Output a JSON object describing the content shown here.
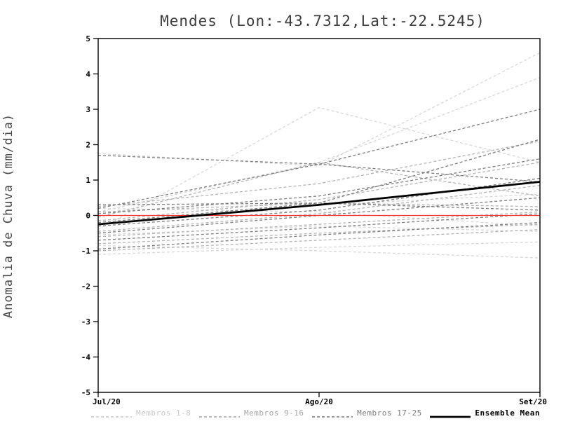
{
  "title": "Mendes (Lon:-43.7312,Lat:-22.5245)",
  "chart_data": {
    "type": "line",
    "title": "Mendes (Lon:-43.7312,Lat:-22.5245)",
    "x": [
      "Jul/20",
      "Ago/20",
      "Set/20"
    ],
    "ylabel": "Anomalia de Chuva (mm/dia)",
    "ylim": [
      -5,
      5
    ],
    "yticks": [
      -5,
      -4,
      -3,
      -2,
      -1,
      0,
      1,
      2,
      3,
      4,
      5
    ],
    "grid": false,
    "legend_position": "bottom",
    "reference_line": {
      "name": "zero-anomaly-line",
      "color": "#ff2a2a",
      "style": "solid",
      "values": [
        0,
        0,
        0
      ]
    },
    "ensemble_mean": {
      "name": "Ensemble Mean",
      "color": "#000000",
      "style": "solid",
      "values": [
        -0.25,
        0.3,
        0.95
      ]
    },
    "groups": [
      {
        "name": "Membros 1-8",
        "color": "#d7d7d7",
        "style": "dashed",
        "members": [
          [
            1.75,
            1.4,
            4.6
          ],
          [
            -0.4,
            3.05,
            1.5
          ],
          [
            0.1,
            1.5,
            3.9
          ],
          [
            -1.1,
            -0.9,
            -0.75
          ],
          [
            -0.85,
            -1.0,
            -1.2
          ],
          [
            -0.55,
            -0.3,
            -0.45
          ],
          [
            0.2,
            0.1,
            -0.3
          ],
          [
            -0.25,
            0.3,
            0.6
          ]
        ]
      },
      {
        "name": "Membros 9-16",
        "color": "#b3b3b3",
        "style": "dashed",
        "members": [
          [
            0.25,
            0.9,
            2.1
          ],
          [
            -0.15,
            0.45,
            1.5
          ],
          [
            -0.45,
            0.05,
            0.85
          ],
          [
            0.1,
            0.35,
            0.25
          ],
          [
            -0.6,
            -0.25,
            0.1
          ],
          [
            -0.8,
            -0.5,
            -0.25
          ],
          [
            -0.05,
            1.5,
            0.55
          ],
          [
            -1.0,
            -0.7,
            -0.4
          ]
        ]
      },
      {
        "name": "Membros 17-25",
        "color": "#7c7c7c",
        "style": "dashed",
        "members": [
          [
            0.2,
            1.45,
            3.0
          ],
          [
            -0.2,
            0.35,
            2.15
          ],
          [
            1.7,
            1.45,
            0.95
          ],
          [
            0.05,
            0.55,
            1.6
          ],
          [
            -0.3,
            0.15,
            1.05
          ],
          [
            -0.5,
            0.0,
            0.5
          ],
          [
            0.3,
            0.35,
            0.15
          ],
          [
            -0.7,
            -0.35,
            0.05
          ],
          [
            -0.95,
            -0.55,
            -0.2
          ]
        ]
      }
    ],
    "legend": [
      {
        "label": "Membros 1-8",
        "color": "#c9c9c9",
        "style": "dashed"
      },
      {
        "label": "Membros 9-16",
        "color": "#a6a6a6",
        "style": "dashed"
      },
      {
        "label": "Membros 17-25",
        "color": "#7c7c7c",
        "style": "dashed"
      },
      {
        "label": "Ensemble Mean",
        "color": "#000000",
        "style": "solid"
      }
    ]
  }
}
